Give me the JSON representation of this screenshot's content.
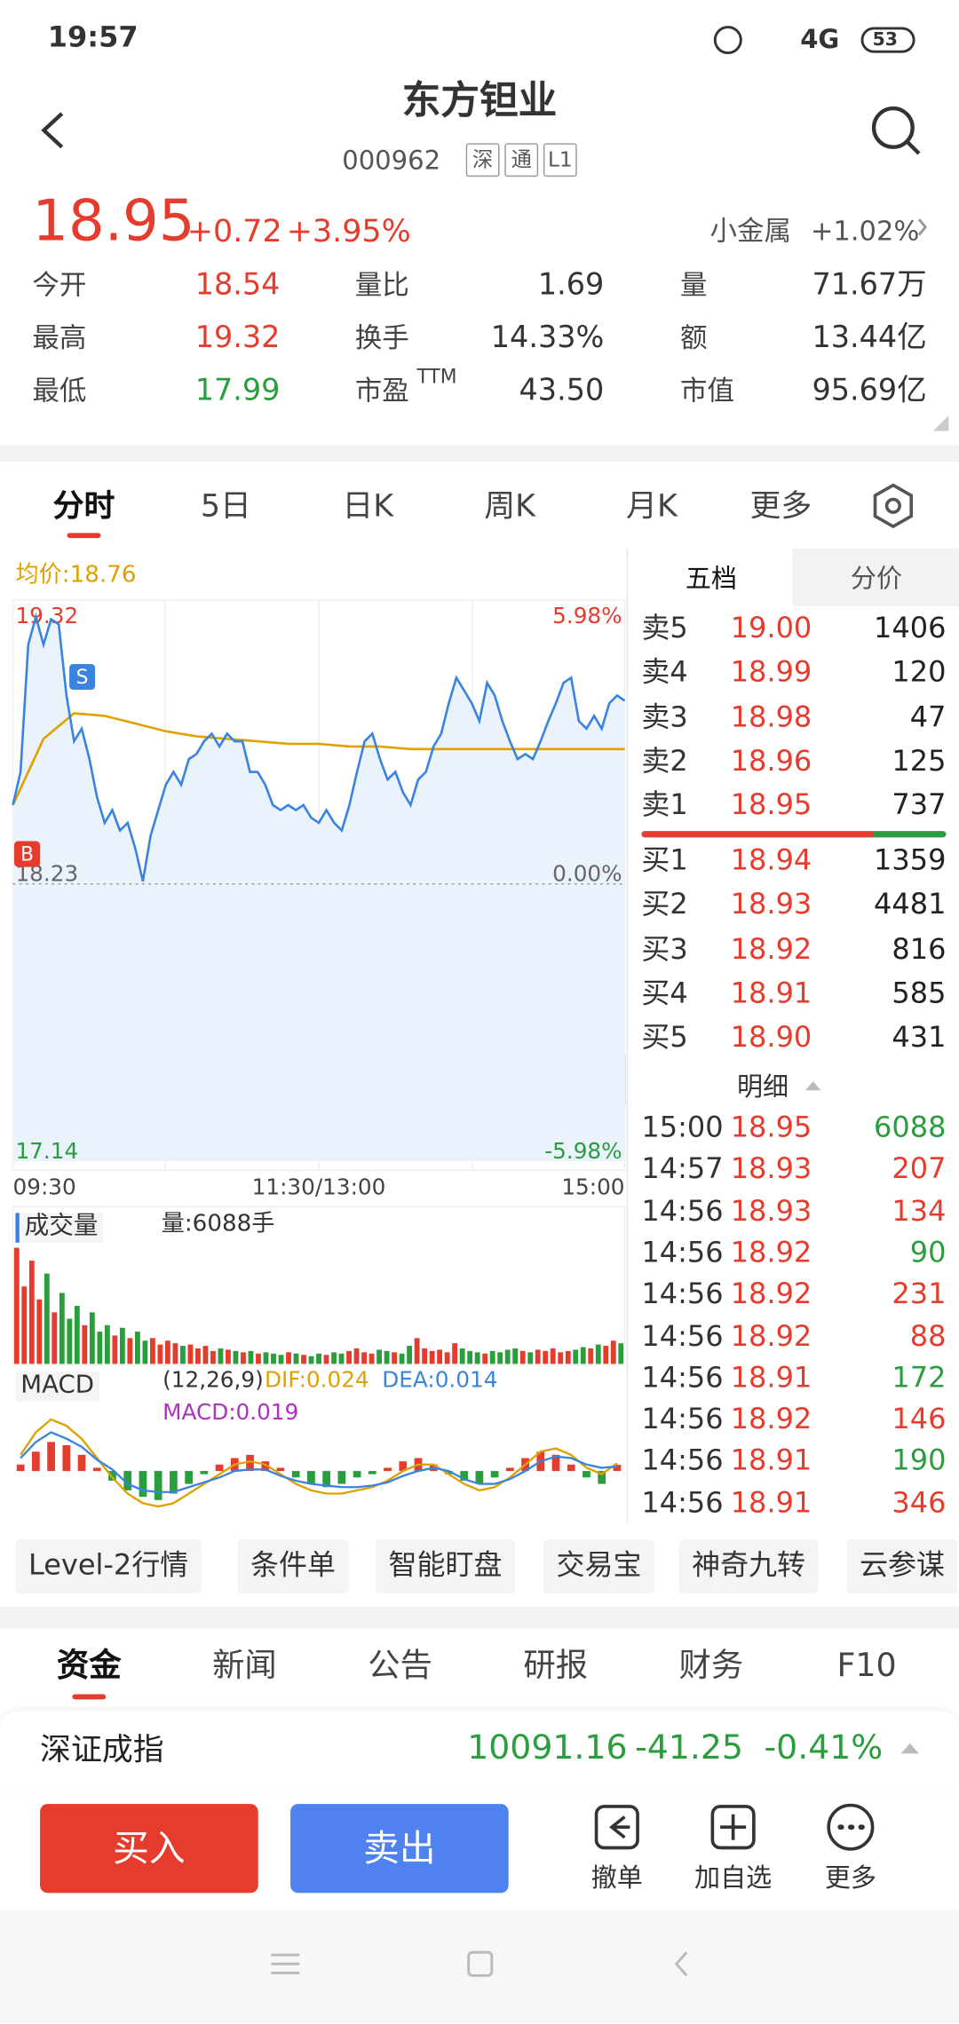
{
  "status_bar": {
    "time": "19:57",
    "network": "4G",
    "battery": "53"
  },
  "header": {
    "title": "东方钽业",
    "code": "000962",
    "tags": [
      "深",
      "通",
      "L1"
    ]
  },
  "quote": {
    "price": "18.95",
    "change": "+0.72",
    "change_pct": "+3.95%",
    "sector": "小金属",
    "sector_change": "+1.02%",
    "stats": [
      {
        "label": "今开",
        "value": "18.54",
        "color": "#e63c2e"
      },
      {
        "label": "量比",
        "value": "1.69",
        "color": "#333333"
      },
      {
        "label": "量",
        "value": "71.67万",
        "color": "#333333"
      },
      {
        "label": "最高",
        "value": "19.32",
        "color": "#e63c2e"
      },
      {
        "label": "换手",
        "value": "14.33%",
        "color": "#333333"
      },
      {
        "label": "额",
        "value": "13.44亿",
        "color": "#333333"
      },
      {
        "label": "最低",
        "value": "17.99",
        "color": "#2a9d3c"
      },
      {
        "label": "市盈",
        "sup": "TTM",
        "value": "43.50",
        "color": "#333333"
      },
      {
        "label": "市值",
        "value": "95.69亿",
        "color": "#333333"
      }
    ]
  },
  "tabs": [
    "分时",
    "5日",
    "日K",
    "周K",
    "月K",
    "更多"
  ],
  "active_tab": 0,
  "intraday": {
    "avg_label": "均价:18.76",
    "ylim": [
      17.14,
      19.32
    ],
    "yticks": [
      19.32,
      18.23,
      17.14
    ],
    "pct_ticks": [
      {
        "value": 19.32,
        "label": "5.98%"
      },
      {
        "value": 18.23,
        "label": "0.00%"
      },
      {
        "value": 17.14,
        "label": "-5.98%"
      }
    ],
    "xticks": [
      "09:30",
      "11:30/13:00",
      "15:00"
    ],
    "price_color": "#3a84e0",
    "avg_color": "#e0a100",
    "prices": [
      18.54,
      18.67,
      19.17,
      19.28,
      19.17,
      19.27,
      19.25,
      18.97,
      18.79,
      18.84,
      18.72,
      18.57,
      18.47,
      18.52,
      18.44,
      18.47,
      18.37,
      18.24,
      18.42,
      18.52,
      18.62,
      18.67,
      18.62,
      18.72,
      18.74,
      18.79,
      18.82,
      18.77,
      18.82,
      18.79,
      18.79,
      18.67,
      18.67,
      18.62,
      18.54,
      18.52,
      18.54,
      18.52,
      18.54,
      18.49,
      18.47,
      18.52,
      18.47,
      18.44,
      18.54,
      18.67,
      18.79,
      18.82,
      18.72,
      18.64,
      18.67,
      18.59,
      18.54,
      18.64,
      18.67,
      18.77,
      18.82,
      18.94,
      19.04,
      18.99,
      18.94,
      18.87,
      19.02,
      18.97,
      18.87,
      18.79,
      18.72,
      18.74,
      18.72,
      18.79,
      18.87,
      18.94,
      19.02,
      19.04,
      18.87,
      18.84,
      18.89,
      18.84,
      18.94,
      18.97,
      18.95
    ],
    "avg": [
      18.54,
      18.8,
      18.9,
      18.89,
      18.86,
      18.83,
      18.81,
      18.8,
      18.79,
      18.78,
      18.78,
      18.77,
      18.77,
      18.76,
      18.76,
      18.76,
      18.76,
      18.76,
      18.76,
      18.76,
      18.76
    ],
    "markers": [
      {
        "label": "B",
        "index": 0,
        "color": "#e63c2e"
      },
      {
        "label": "S",
        "index": 4,
        "color": "#3a84e0"
      }
    ],
    "volume_title": "成交量",
    "volume_label": "量:6088手",
    "volume": [
      90,
      60,
      80,
      50,
      70,
      40,
      55,
      35,
      45,
      30,
      40,
      25,
      30,
      22,
      28,
      20,
      25,
      18,
      20,
      15,
      18,
      16,
      14,
      15,
      12,
      14,
      10,
      12,
      11,
      10,
      9,
      10,
      8,
      9,
      8,
      7,
      9,
      8,
      7,
      6,
      8,
      7,
      9,
      8,
      10,
      12,
      9,
      8,
      11,
      10,
      9,
      8,
      14,
      20,
      12,
      10,
      11,
      9,
      16,
      12,
      10,
      9,
      8,
      10,
      9,
      11,
      12,
      10,
      9,
      11,
      10,
      12,
      9,
      10,
      11,
      13,
      12,
      15,
      14,
      18,
      16
    ],
    "macd_title": "MACD",
    "macd_params": "(12,26,9)",
    "dif_label": "DIF:0.024",
    "dea_label": "DEA:0.014",
    "macd_label": "MACD:0.019",
    "macd_hist": [
      0.02,
      0.06,
      0.09,
      0.08,
      0.05,
      0.01,
      -0.03,
      -0.06,
      -0.08,
      -0.09,
      -0.07,
      -0.04,
      -0.01,
      0.02,
      0.04,
      0.05,
      0.03,
      0.01,
      -0.02,
      -0.04,
      -0.05,
      -0.04,
      -0.02,
      -0.01,
      0.01,
      0.03,
      0.04,
      0.02,
      -0.01,
      -0.03,
      -0.04,
      -0.02,
      0.01,
      0.04,
      0.06,
      0.05,
      0.02,
      -0.02,
      -0.04,
      0.019
    ],
    "dif": [
      0.05,
      0.12,
      0.16,
      0.14,
      0.1,
      0.04,
      -0.02,
      -0.07,
      -0.1,
      -0.11,
      -0.1,
      -0.07,
      -0.04,
      -0.01,
      0.02,
      0.03,
      0.02,
      -0.01,
      -0.04,
      -0.06,
      -0.07,
      -0.07,
      -0.06,
      -0.05,
      -0.03,
      0,
      0.02,
      0.02,
      -0.01,
      -0.04,
      -0.06,
      -0.05,
      -0.02,
      0.02,
      0.06,
      0.07,
      0.05,
      0.01,
      -0.01,
      0.024
    ],
    "dea": [
      0.04,
      0.09,
      0.12,
      0.1,
      0.075,
      0.035,
      0.005,
      -0.04,
      -0.06,
      -0.065,
      -0.065,
      -0.05,
      -0.035,
      -0.02,
      0,
      0.005,
      0.005,
      -0.015,
      -0.03,
      -0.04,
      -0.045,
      -0.05,
      -0.05,
      -0.045,
      -0.035,
      -0.015,
      0,
      0.01,
      0,
      -0.025,
      -0.04,
      -0.04,
      -0.025,
      0,
      0.03,
      0.045,
      0.04,
      0.02,
      0.01,
      0.014
    ]
  },
  "order_book": {
    "tabs": [
      "五档",
      "分价"
    ],
    "asks": [
      {
        "label": "卖5",
        "price": "19.00",
        "volume": "1406"
      },
      {
        "label": "卖4",
        "price": "18.99",
        "volume": "120"
      },
      {
        "label": "卖3",
        "price": "18.98",
        "volume": "47"
      },
      {
        "label": "卖2",
        "price": "18.96",
        "volume": "125"
      },
      {
        "label": "卖1",
        "price": "18.95",
        "volume": "737"
      }
    ],
    "bids": [
      {
        "label": "买1",
        "price": "18.94",
        "volume": "1359"
      },
      {
        "label": "买2",
        "price": "18.93",
        "volume": "4481"
      },
      {
        "label": "买3",
        "price": "18.92",
        "volume": "816"
      },
      {
        "label": "买4",
        "price": "18.91",
        "volume": "585"
      },
      {
        "label": "买5",
        "price": "18.90",
        "volume": "431"
      }
    ],
    "detail_title": "明细",
    "trades": [
      {
        "time": "15:00",
        "price": "18.95",
        "volume": "6088",
        "color": "#2a9d3c"
      },
      {
        "time": "14:57",
        "price": "18.93",
        "volume": "207",
        "color": "#e63c2e"
      },
      {
        "time": "14:56",
        "price": "18.93",
        "volume": "134",
        "color": "#e63c2e"
      },
      {
        "time": "14:56",
        "price": "18.92",
        "volume": "90",
        "color": "#2a9d3c"
      },
      {
        "time": "14:56",
        "price": "18.92",
        "volume": "231",
        "color": "#e63c2e"
      },
      {
        "time": "14:56",
        "price": "18.92",
        "volume": "88",
        "color": "#e63c2e"
      },
      {
        "time": "14:56",
        "price": "18.91",
        "volume": "172",
        "color": "#2a9d3c"
      },
      {
        "time": "14:56",
        "price": "18.92",
        "volume": "146",
        "color": "#e63c2e"
      },
      {
        "time": "14:56",
        "price": "18.91",
        "volume": "190",
        "color": "#2a9d3c"
      },
      {
        "time": "14:56",
        "price": "18.91",
        "volume": "346",
        "color": "#e63c2e"
      }
    ]
  },
  "tools": [
    "Level-2行情",
    "条件单",
    "智能盯盘",
    "交易宝",
    "神奇九转",
    "云参谋"
  ],
  "bottom_tabs": [
    "资金",
    "新闻",
    "公告",
    "研报",
    "财务",
    "F10"
  ],
  "index": {
    "name": "深证成指",
    "value": "10091.16",
    "change": "-41.25",
    "change_pct": "-0.41%"
  },
  "actions": {
    "buy": "买入",
    "sell": "卖出",
    "icons": [
      "撤单",
      "加自选",
      "更多"
    ]
  }
}
